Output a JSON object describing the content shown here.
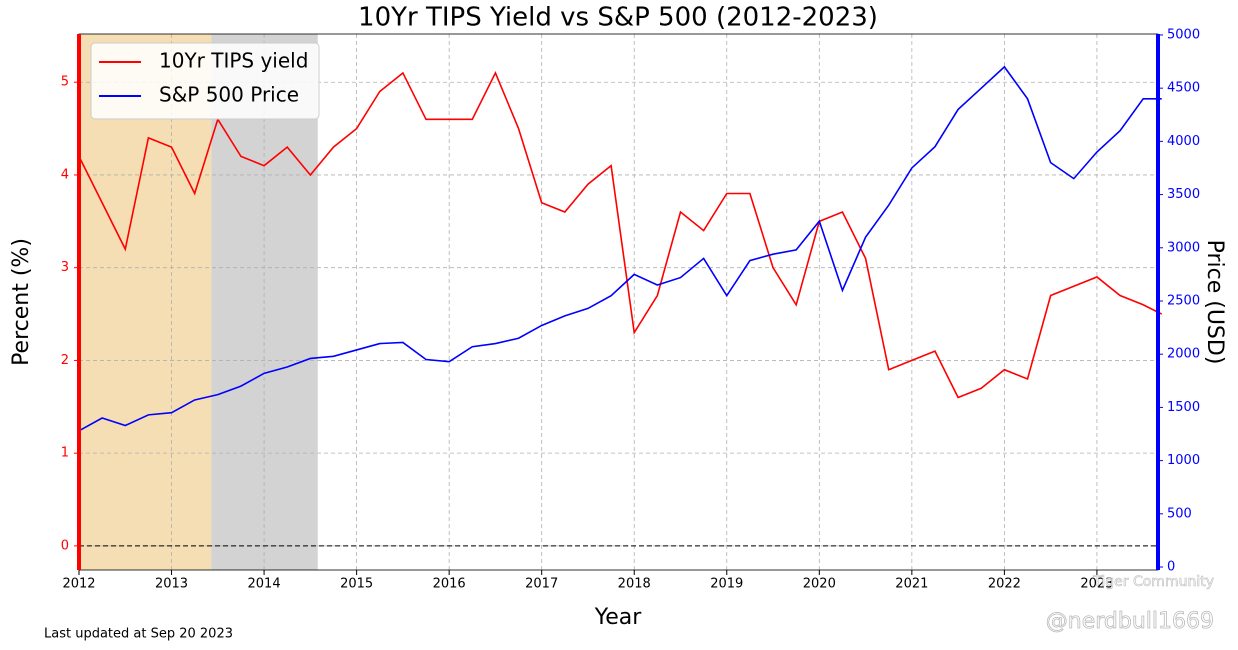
{
  "chart_data": {
    "type": "line",
    "title": "10Yr TIPS Yield vs S&P 500 (2012-2023)",
    "x_label": "Year",
    "y_label": "Percent (%)",
    "y2_label": "Price (USD)",
    "footnote": "Last updated at Sep 20 2023",
    "watermark": "@nerdbull1669",
    "watermark_brand": "Tiger Community",
    "x": [
      2012,
      2012.25,
      2012.5,
      2012.75,
      2013,
      2013.25,
      2013.5,
      2013.75,
      2014,
      2014.25,
      2014.5,
      2014.75,
      2015,
      2015.25,
      2015.5,
      2015.75,
      2016,
      2016.25,
      2016.5,
      2016.75,
      2017,
      2017.25,
      2017.5,
      2017.75,
      2018,
      2018.25,
      2018.5,
      2018.75,
      2019,
      2019.25,
      2019.5,
      2019.75,
      2020,
      2020.25,
      2020.5,
      2020.75,
      2021,
      2021.25,
      2021.5,
      2021.75,
      2022,
      2022.25,
      2022.5,
      2022.75,
      2023,
      2023.25,
      2023.5,
      2023.7
    ],
    "series": [
      {
        "name": "10Yr TIPS yield",
        "color": "#ff0000",
        "axis": "y",
        "values": [
          4.2,
          3.7,
          3.2,
          4.4,
          4.3,
          3.8,
          4.6,
          4.2,
          4.1,
          4.3,
          4.0,
          4.3,
          4.5,
          4.9,
          5.1,
          4.6,
          4.6,
          4.6,
          5.1,
          4.5,
          3.7,
          3.6,
          3.9,
          4.1,
          2.3,
          2.7,
          3.6,
          3.4,
          3.8,
          3.8,
          3.0,
          2.6,
          3.5,
          3.6,
          3.1,
          1.9,
          2.0,
          2.1,
          1.6,
          1.7,
          1.9,
          1.8,
          2.7,
          2.8,
          2.9,
          2.7,
          2.6,
          2.5
        ]
      },
      {
        "name": "S&P 500 Price",
        "color": "#0000ff",
        "axis": "y2",
        "values": [
          1280,
          1400,
          1330,
          1430,
          1450,
          1570,
          1620,
          1700,
          1820,
          1880,
          1960,
          1980,
          2040,
          2100,
          2110,
          1950,
          1930,
          2070,
          2100,
          2150,
          2270,
          2360,
          2430,
          2550,
          2750,
          2650,
          2720,
          2900,
          2550,
          2880,
          2940,
          2980,
          3250,
          2600,
          3100,
          3400,
          3750,
          3950,
          4300,
          4500,
          4700,
          4400,
          3800,
          3650,
          3900,
          4100,
          4400,
          4400
        ]
      }
    ],
    "spans": [
      {
        "start": 2012,
        "end": 2013.43,
        "color": "#f5deb3"
      },
      {
        "start": 2013.43,
        "end": 2014.58,
        "color": "#d3d3d3"
      }
    ],
    "hline": 0,
    "xlim": [
      2012,
      2023.66
    ],
    "xticks": [
      2012,
      2013,
      2014,
      2015,
      2016,
      2017,
      2018,
      2019,
      2020,
      2021,
      2022,
      2023
    ],
    "ylim": [
      -0.26,
      5.52
    ],
    "yticks": [
      0,
      1,
      2,
      3,
      4,
      5
    ],
    "y2lim": [
      -28,
      5009
    ],
    "y2ticks": [
      0,
      500,
      1000,
      1500,
      2000,
      2500,
      3000,
      3500,
      4000,
      4500,
      5000
    ],
    "grid": true,
    "legend": "upper left",
    "y_color": "#ff0000",
    "y2_color": "#0000ff"
  }
}
